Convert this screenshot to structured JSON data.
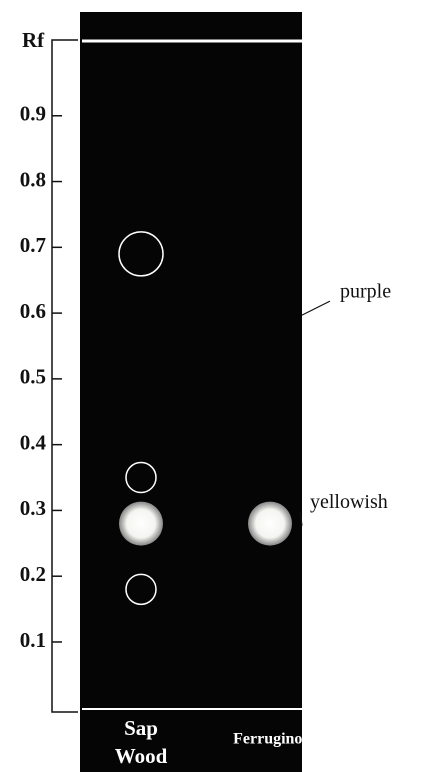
{
  "chart_data": {
    "type": "tlc",
    "y_label": "Rf",
    "ylim": [
      0,
      1
    ],
    "yticks": [
      0.1,
      0.2,
      0.3,
      0.4,
      0.5,
      0.6,
      0.7,
      0.8,
      0.9
    ],
    "lanes": [
      [
        "Sap",
        "Wood"
      ],
      [
        "Ferruginol"
      ]
    ],
    "spots": [
      {
        "lane": 0,
        "rf": 0.69,
        "style": "ring"
      },
      {
        "lane": 0,
        "rf": 0.35,
        "style": "ring"
      },
      {
        "lane": 0,
        "rf": 0.28,
        "style": "bright"
      },
      {
        "lane": 0,
        "rf": 0.18,
        "style": "ring"
      },
      {
        "lane": 1,
        "rf": 0.28,
        "style": "bright"
      }
    ],
    "annotations": [
      {
        "text": "purple",
        "rf": 0.6
      },
      {
        "text": "yellowish",
        "rf": 0.28
      }
    ]
  }
}
